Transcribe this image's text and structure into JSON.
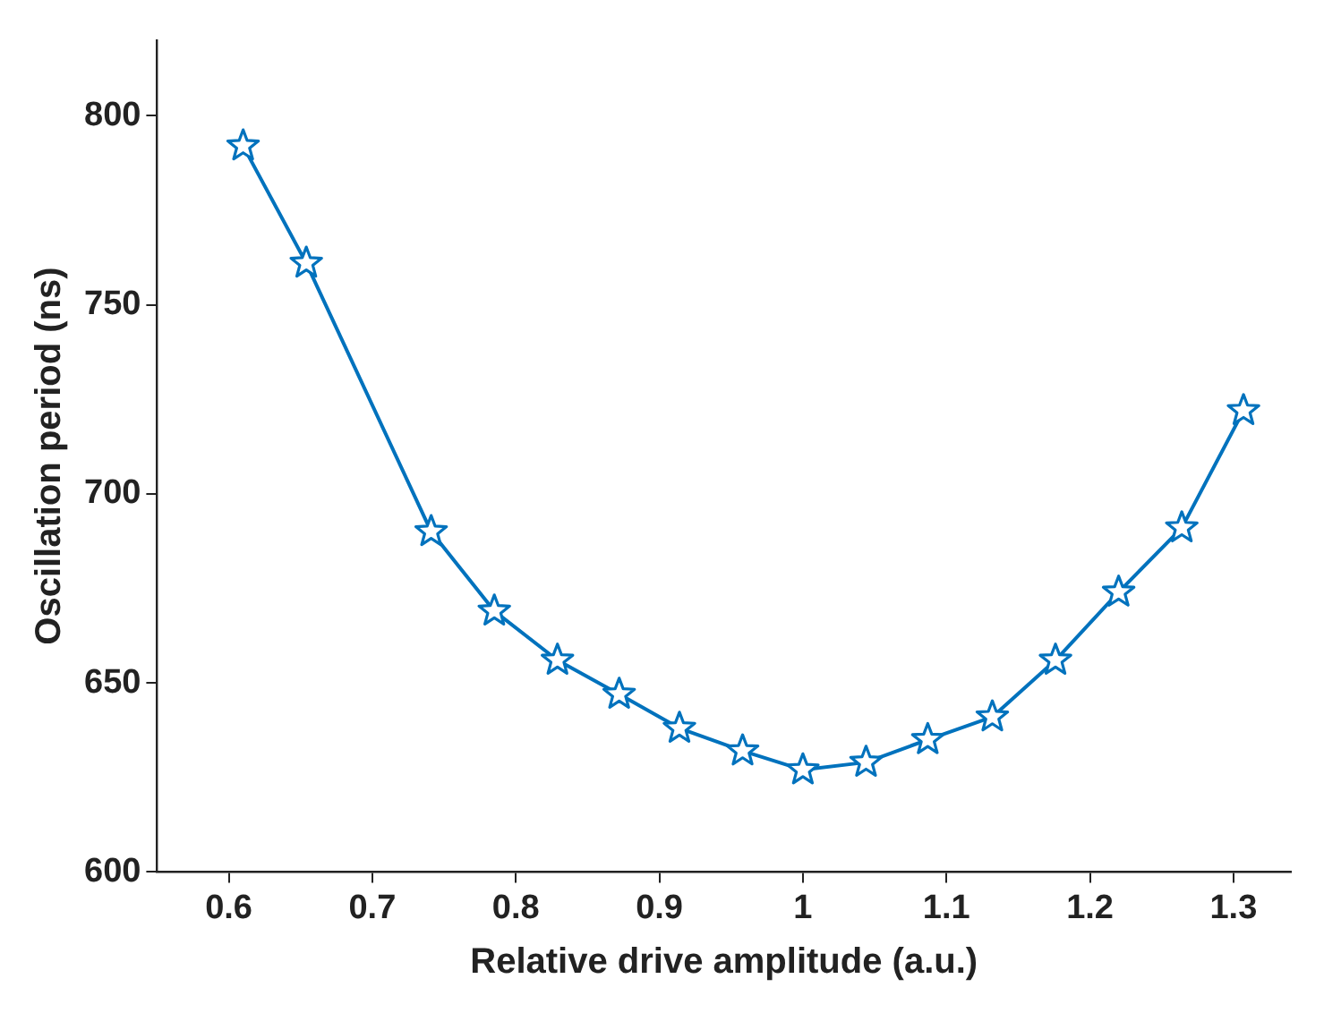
{
  "chart_data": {
    "type": "line",
    "xlabel": "Relative drive amplitude (a.u.)",
    "ylabel": "Oscillation period (ns)",
    "x": [
      0.61,
      0.654,
      0.741,
      0.785,
      0.829,
      0.872,
      0.914,
      0.958,
      1.0,
      1.044,
      1.087,
      1.132,
      1.176,
      1.22,
      1.264,
      1.307
    ],
    "series": [
      {
        "color": "#0072bd",
        "values": [
          792,
          761,
          690,
          669,
          656,
          647,
          638,
          632,
          627,
          629,
          635,
          641,
          656,
          674,
          691,
          722
        ]
      }
    ],
    "xlim": [
      0.55,
      1.34
    ],
    "xticks": [
      0.6,
      0.7,
      0.8,
      0.9,
      1,
      1.1,
      1.2,
      1.3
    ],
    "ylim": [
      600,
      820
    ],
    "yticks": [
      600,
      650,
      700,
      750,
      800
    ],
    "grid": false,
    "legend": false,
    "marker": "star",
    "line_style": "solid"
  }
}
